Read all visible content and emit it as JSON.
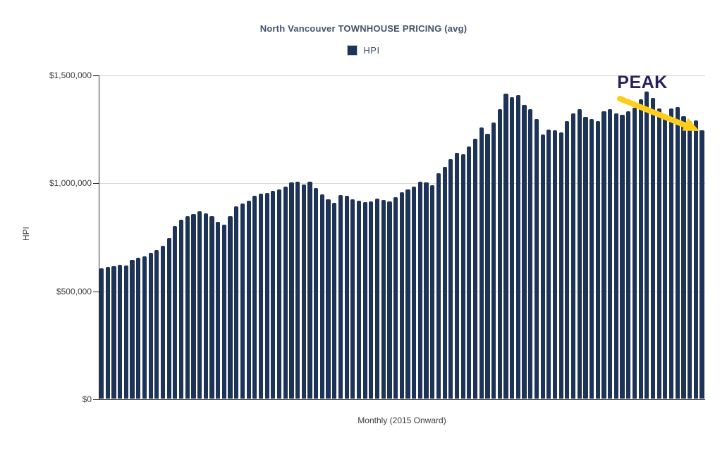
{
  "title": "North Vancouver TOWNHOUSE PRICING (avg)",
  "legend": {
    "label": "HPI"
  },
  "axes": {
    "y_label": "HPI",
    "x_label": "Monthly (2015 Onward)",
    "y_ticks": [
      "$1,500,000",
      "$1,000,000",
      "$500,000",
      "$0"
    ]
  },
  "annotation": {
    "label": "PEAK"
  },
  "colors": {
    "bar": "#1d3358",
    "grid": "#d8d8d8",
    "axis": "#2b2b2b",
    "text": "#3d3d3d",
    "title": "#44546a",
    "annotation_text": "#2a1f5e",
    "arrow": "#ffce1b"
  },
  "chart_data": {
    "type": "bar",
    "title": "North Vancouver TOWNHOUSE PRICING (avg)",
    "xlabel": "Monthly (2015 Onward)",
    "ylabel": "HPI",
    "legend": [
      "HPI"
    ],
    "legend_position": "top-center",
    "grid": "horizontal",
    "ylim": [
      0,
      1500000
    ],
    "yticks": [
      0,
      500000,
      1000000,
      1500000
    ],
    "x_unit": "month",
    "x_start": "2015-01",
    "series": [
      {
        "name": "HPI",
        "values": [
          606000,
          610000,
          614000,
          622000,
          618000,
          645000,
          652000,
          660000,
          675000,
          690000,
          710000,
          745000,
          800000,
          830000,
          845000,
          856000,
          870000,
          858000,
          846000,
          820000,
          808000,
          845000,
          893000,
          906000,
          920000,
          942000,
          950000,
          955000,
          964000,
          971000,
          985000,
          1002000,
          1008000,
          995000,
          1005000,
          978000,
          948000,
          925000,
          908000,
          944000,
          940000,
          926000,
          918000,
          911000,
          915000,
          929000,
          923000,
          915000,
          936000,
          958000,
          972000,
          985000,
          1008000,
          1004000,
          991000,
          1046000,
          1075000,
          1111000,
          1140000,
          1133000,
          1170000,
          1205000,
          1258000,
          1229000,
          1280000,
          1342000,
          1414000,
          1400000,
          1408000,
          1362000,
          1342000,
          1296000,
          1225000,
          1247000,
          1244000,
          1236000,
          1287000,
          1323000,
          1342000,
          1307000,
          1296000,
          1287000,
          1334000,
          1342000,
          1323000,
          1316000,
          1334000,
          1350000,
          1389000,
          1424000,
          1394000,
          1345000,
          1318000,
          1347000,
          1353000,
          1311000,
          1289000,
          1292000,
          1246000
        ]
      }
    ],
    "annotations": [
      {
        "text": "PEAK",
        "note": "arrow drawn from the 2022 peak bar (~$1,424,000) down toward the most recent bars (~$1,246,000)"
      }
    ]
  }
}
